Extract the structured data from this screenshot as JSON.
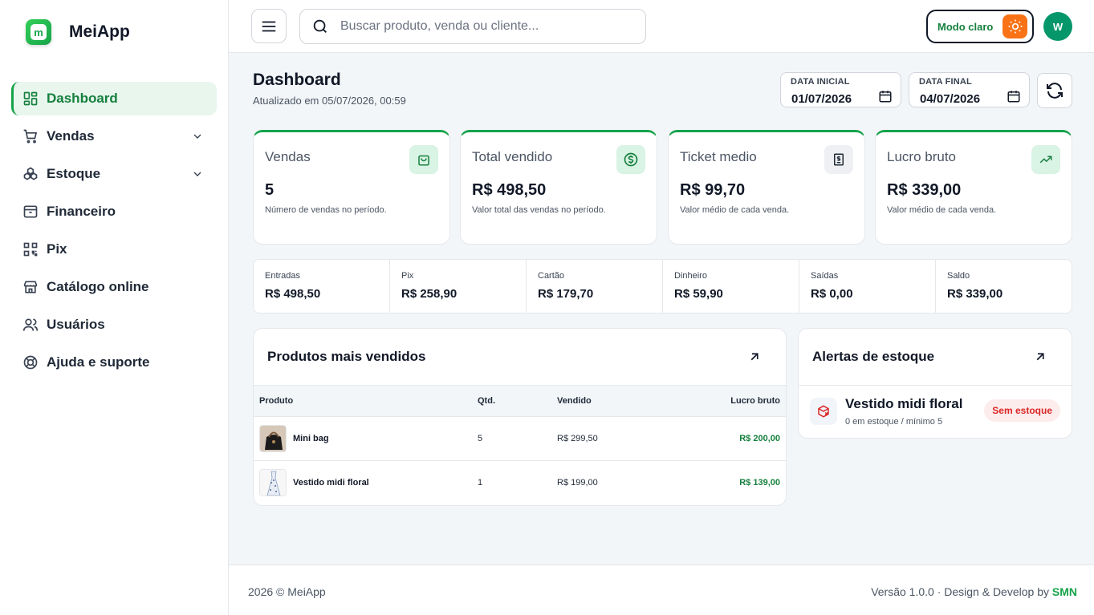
{
  "app": {
    "name": "MeiApp",
    "logo_letter": "m"
  },
  "sidebar": {
    "items": [
      {
        "label": "Dashboard",
        "icon": "dashboard-grid-icon",
        "active": true
      },
      {
        "label": "Vendas",
        "icon": "cart-icon",
        "has_submenu": true
      },
      {
        "label": "Estoque",
        "icon": "boxes-icon",
        "has_submenu": true
      },
      {
        "label": "Financeiro",
        "icon": "archive-icon"
      },
      {
        "label": "Pix",
        "icon": "qr-code-icon"
      },
      {
        "label": "Catálogo online",
        "icon": "store-icon"
      },
      {
        "label": "Usuários",
        "icon": "users-icon"
      },
      {
        "label": "Ajuda e suporte",
        "icon": "lifebuoy-icon"
      }
    ]
  },
  "topbar": {
    "search_placeholder": "Buscar produto, venda ou cliente...",
    "mode_label": "Modo claro",
    "avatar_initial": "W"
  },
  "header": {
    "title": "Dashboard",
    "updated": "Atualizado em 05/07/2026, 00:59",
    "date_start_label": "DATA INICIAL",
    "date_start": "01/07/2026",
    "date_end_label": "DATA FINAL",
    "date_end": "04/07/2026"
  },
  "stats": [
    {
      "title": "Vendas",
      "value": "5",
      "desc": "Número de vendas no período.",
      "icon": "shopping-bag-icon",
      "icon_bg": "#d9f3e4",
      "icon_color": "#15803d"
    },
    {
      "title": "Total vendido",
      "value": "R$ 498,50",
      "desc": "Valor total das vendas no período.",
      "icon": "dollar-circle-icon",
      "icon_bg": "#d9f3e4",
      "icon_color": "#15803d"
    },
    {
      "title": "Ticket medio",
      "value": "R$ 99,70",
      "desc": "Valor médio de cada venda.",
      "icon": "receipt-icon",
      "icon_bg": "#eef0f3",
      "icon_color": "#1f2937"
    },
    {
      "title": "Lucro bruto",
      "value": "R$ 339,00",
      "desc": "Valor médio de cada venda.",
      "icon": "trending-up-icon",
      "icon_bg": "#d9f3e4",
      "icon_color": "#15803d"
    }
  ],
  "summary": [
    {
      "label": "Entradas",
      "value": "R$ 498,50"
    },
    {
      "label": "Pix",
      "value": "R$ 258,90"
    },
    {
      "label": "Cartão",
      "value": "R$ 179,70"
    },
    {
      "label": "Dinheiro",
      "value": "R$ 59,90"
    },
    {
      "label": "Saídas",
      "value": "R$ 0,00"
    },
    {
      "label": "Saldo",
      "value": "R$ 339,00"
    }
  ],
  "top_products": {
    "title": "Produtos mais vendidos",
    "columns": {
      "product": "Produto",
      "qty": "Qtd.",
      "sold": "Vendido",
      "profit": "Lucro bruto"
    },
    "rows": [
      {
        "name": "Mini bag",
        "qty": "5",
        "sold": "R$ 299,50",
        "profit": "R$ 200,00"
      },
      {
        "name": "Vestido midi floral",
        "qty": "1",
        "sold": "R$ 199,00",
        "profit": "R$ 139,00"
      }
    ]
  },
  "stock_alerts": {
    "title": "Alertas de estoque",
    "items": [
      {
        "name": "Vestido midi floral",
        "sub": "0 em estoque / mínimo 5",
        "badge": "Sem estoque"
      }
    ]
  },
  "footer": {
    "left": "2026 © MeiApp",
    "right_prefix": "Versão 1.0.0 · Design & Develop by",
    "right_brand": "SMN"
  }
}
